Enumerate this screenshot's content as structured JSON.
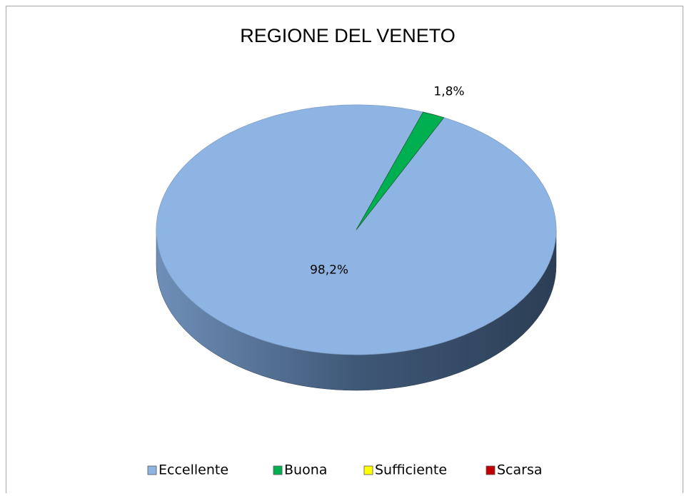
{
  "chart_data": {
    "type": "pie",
    "title": "REGIONE DEL VENETO",
    "categories": [
      "Eccellente",
      "Buona",
      "Sufficiente",
      "Scarsa"
    ],
    "values": [
      98.2,
      1.8,
      0,
      0
    ],
    "value_labels": [
      "98,2%",
      "1,8%",
      null,
      null
    ],
    "colors": [
      "#8eb4e3",
      "#00b050",
      "#ffff00",
      "#c00000"
    ],
    "legend": "bottom"
  }
}
